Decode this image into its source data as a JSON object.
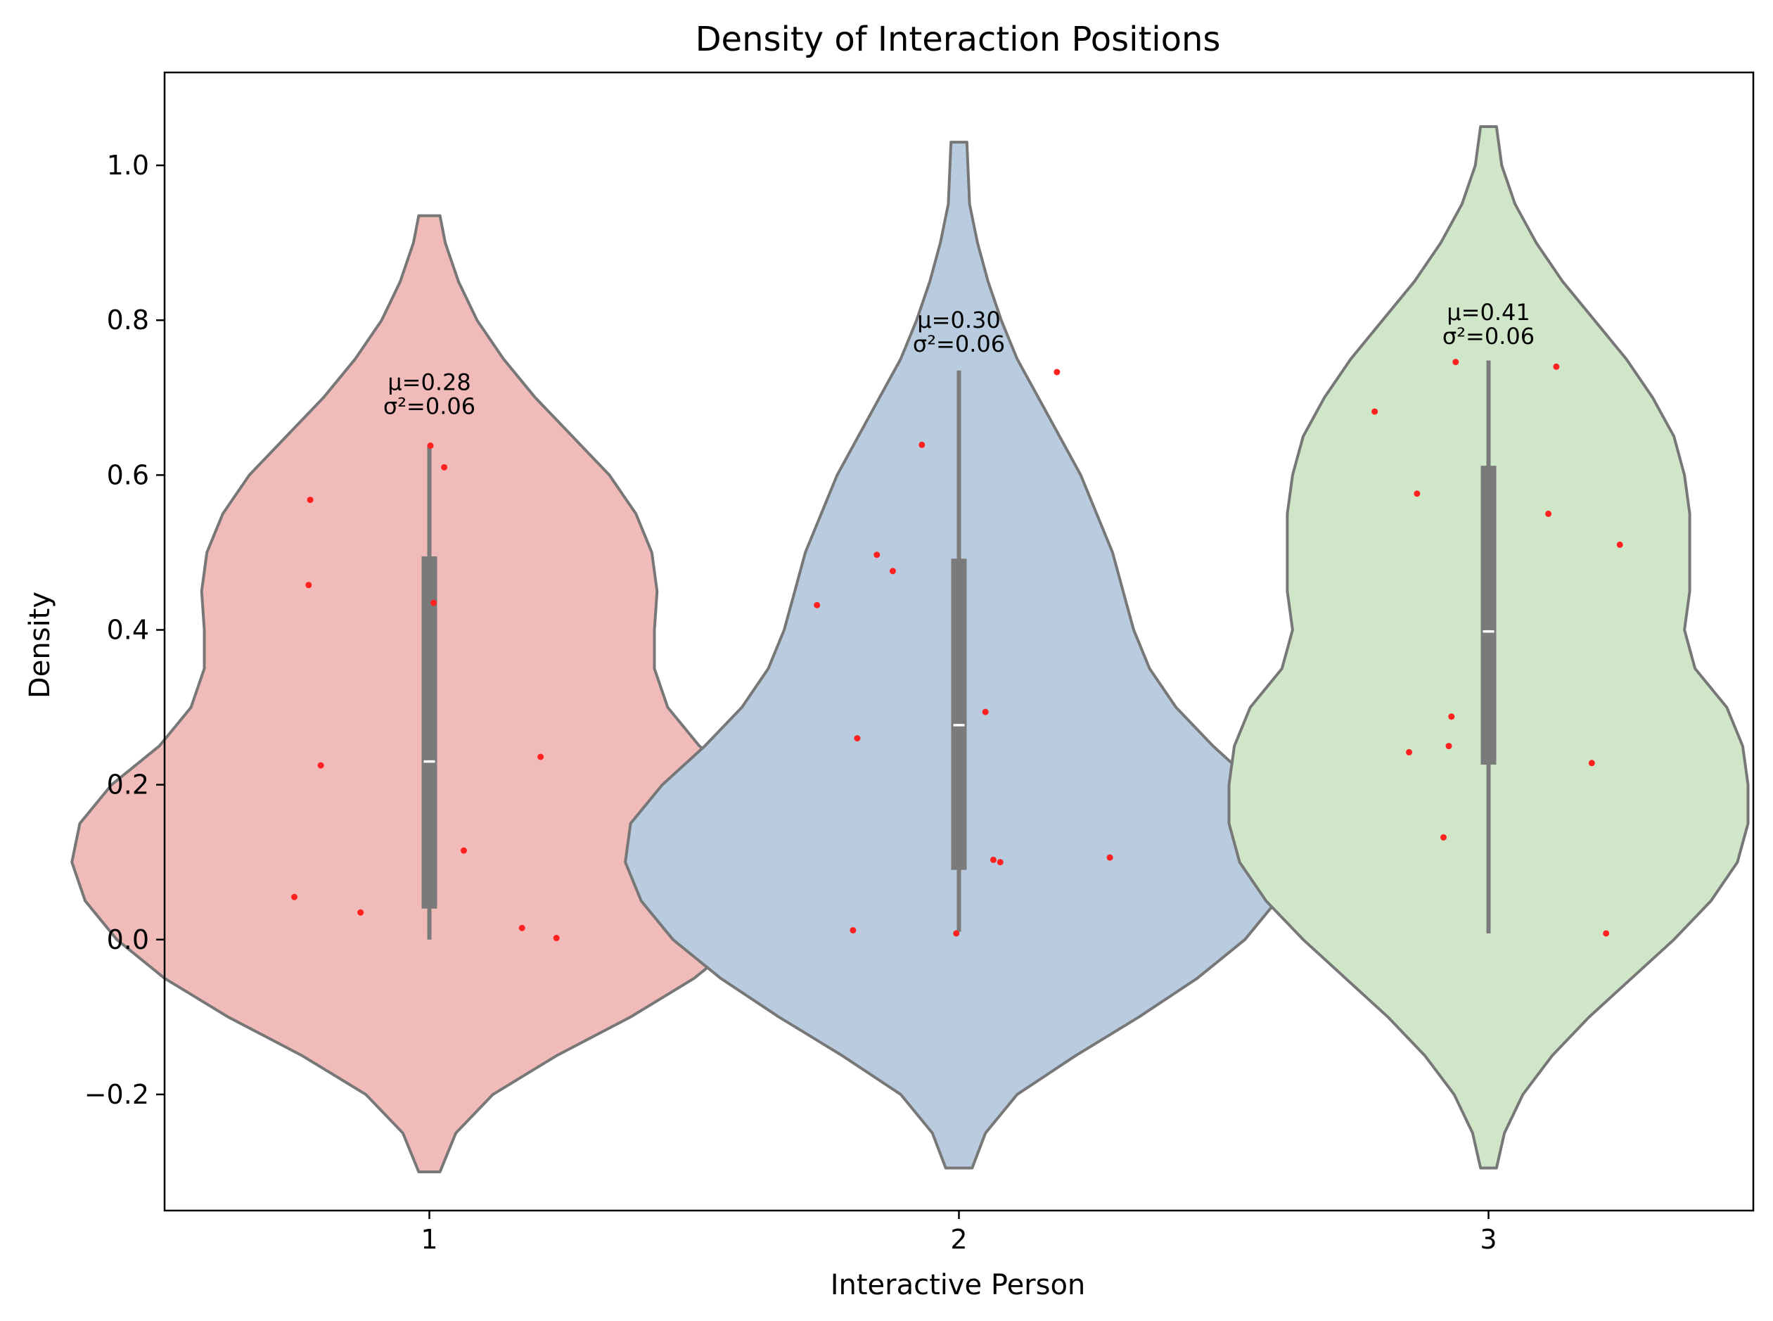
{
  "chart_data": {
    "type": "violin",
    "title": "Density of Interaction Positions",
    "xlabel": "Interactive Person",
    "ylabel": "Density",
    "ylim": [
      -0.35,
      1.12
    ],
    "xlim": [
      0.5,
      3.5
    ],
    "yticks": [
      -0.2,
      0.0,
      0.2,
      0.4,
      0.6,
      0.8,
      1.0
    ],
    "ytick_labels": [
      "−0.2",
      "0.0",
      "0.2",
      "0.4",
      "0.6",
      "0.8",
      "1.0"
    ],
    "categories": [
      "1",
      "2",
      "3"
    ],
    "colors": {
      "violins": [
        "#f1bbb9",
        "#b9cbde",
        "#d0e6c9"
      ],
      "outline": "#777777",
      "box": "#7a7a7a",
      "median": "#ffffff",
      "points": "#ff2020"
    },
    "annotation_y": [
      0.71,
      0.79,
      0.8
    ],
    "series": [
      {
        "name": "1",
        "mean_label": "μ=0.28",
        "var_label": "σ²=0.06",
        "q1": 0.04,
        "median": 0.23,
        "q3": 0.495,
        "whisker_low": 0.0,
        "whisker_high": 0.64,
        "profile": [
          [
            -0.3,
            0.02
          ],
          [
            -0.25,
            0.05
          ],
          [
            -0.2,
            0.12
          ],
          [
            -0.15,
            0.24
          ],
          [
            -0.1,
            0.38
          ],
          [
            -0.05,
            0.5
          ],
          [
            0.0,
            0.59
          ],
          [
            0.05,
            0.65
          ],
          [
            0.1,
            0.675
          ],
          [
            0.15,
            0.66
          ],
          [
            0.2,
            0.6
          ],
          [
            0.25,
            0.51
          ],
          [
            0.3,
            0.45
          ],
          [
            0.35,
            0.425
          ],
          [
            0.4,
            0.425
          ],
          [
            0.45,
            0.43
          ],
          [
            0.5,
            0.42
          ],
          [
            0.55,
            0.39
          ],
          [
            0.6,
            0.34
          ],
          [
            0.65,
            0.27
          ],
          [
            0.7,
            0.2
          ],
          [
            0.75,
            0.14
          ],
          [
            0.8,
            0.09
          ],
          [
            0.85,
            0.055
          ],
          [
            0.9,
            0.03
          ],
          [
            0.935,
            0.02
          ]
        ],
        "points": [
          [
            -0.255,
            0.055
          ],
          [
            -0.13,
            0.035
          ],
          [
            -0.225,
            0.568
          ],
          [
            -0.228,
            0.458
          ],
          [
            -0.205,
            0.225
          ],
          [
            0.002,
            0.638
          ],
          [
            0.028,
            0.61
          ],
          [
            0.008,
            0.435
          ],
          [
            0.065,
            0.115
          ],
          [
            0.175,
            0.015
          ],
          [
            0.21,
            0.236
          ],
          [
            0.24,
            0.002
          ]
        ]
      },
      {
        "name": "2",
        "mean_label": "μ=0.30",
        "var_label": "σ²=0.06",
        "q1": 0.09,
        "median": 0.277,
        "q3": 0.492,
        "whisker_low": 0.01,
        "whisker_high": 0.735,
        "profile": [
          [
            -0.295,
            0.025
          ],
          [
            -0.25,
            0.05
          ],
          [
            -0.2,
            0.11
          ],
          [
            -0.15,
            0.22
          ],
          [
            -0.1,
            0.34
          ],
          [
            -0.05,
            0.45
          ],
          [
            0.0,
            0.54
          ],
          [
            0.05,
            0.6
          ],
          [
            0.1,
            0.63
          ],
          [
            0.15,
            0.62
          ],
          [
            0.2,
            0.56
          ],
          [
            0.25,
            0.48
          ],
          [
            0.3,
            0.41
          ],
          [
            0.35,
            0.36
          ],
          [
            0.4,
            0.33
          ],
          [
            0.45,
            0.31
          ],
          [
            0.5,
            0.29
          ],
          [
            0.55,
            0.26
          ],
          [
            0.6,
            0.23
          ],
          [
            0.65,
            0.19
          ],
          [
            0.7,
            0.15
          ],
          [
            0.75,
            0.11
          ],
          [
            0.8,
            0.08
          ],
          [
            0.85,
            0.055
          ],
          [
            0.9,
            0.035
          ],
          [
            0.95,
            0.02
          ],
          [
            1.03,
            0.015
          ]
        ],
        "points": [
          [
            -0.2,
            0.012
          ],
          [
            -0.268,
            0.432
          ],
          [
            -0.192,
            0.26
          ],
          [
            -0.155,
            0.497
          ],
          [
            -0.125,
            0.476
          ],
          [
            -0.07,
            0.639
          ],
          [
            -0.005,
            0.008
          ],
          [
            0.05,
            0.294
          ],
          [
            0.065,
            0.103
          ],
          [
            0.078,
            0.1
          ],
          [
            0.185,
            0.733
          ],
          [
            0.285,
            0.106
          ]
        ]
      },
      {
        "name": "3",
        "mean_label": "μ=0.41",
        "var_label": "σ²=0.06",
        "q1": 0.226,
        "median": 0.398,
        "q3": 0.612,
        "whisker_low": 0.008,
        "whisker_high": 0.748,
        "profile": [
          [
            -0.295,
            0.015
          ],
          [
            -0.25,
            0.03
          ],
          [
            -0.2,
            0.065
          ],
          [
            -0.15,
            0.12
          ],
          [
            -0.1,
            0.19
          ],
          [
            -0.05,
            0.27
          ],
          [
            0.0,
            0.35
          ],
          [
            0.05,
            0.42
          ],
          [
            0.1,
            0.47
          ],
          [
            0.15,
            0.49
          ],
          [
            0.2,
            0.49
          ],
          [
            0.25,
            0.48
          ],
          [
            0.3,
            0.45
          ],
          [
            0.35,
            0.39
          ],
          [
            0.4,
            0.37
          ],
          [
            0.45,
            0.38
          ],
          [
            0.5,
            0.38
          ],
          [
            0.55,
            0.38
          ],
          [
            0.6,
            0.37
          ],
          [
            0.65,
            0.35
          ],
          [
            0.7,
            0.31
          ],
          [
            0.75,
            0.26
          ],
          [
            0.8,
            0.2
          ],
          [
            0.85,
            0.14
          ],
          [
            0.9,
            0.09
          ],
          [
            0.95,
            0.05
          ],
          [
            1.0,
            0.025
          ],
          [
            1.05,
            0.015
          ]
        ],
        "points": [
          [
            -0.215,
            0.682
          ],
          [
            -0.135,
            0.576
          ],
          [
            -0.15,
            0.242
          ],
          [
            -0.085,
            0.132
          ],
          [
            -0.075,
            0.25
          ],
          [
            -0.07,
            0.288
          ],
          [
            -0.062,
            0.746
          ],
          [
            0.113,
            0.55
          ],
          [
            0.128,
            0.74
          ],
          [
            0.195,
            0.228
          ],
          [
            0.222,
            0.008
          ],
          [
            0.248,
            0.51
          ]
        ]
      }
    ]
  }
}
